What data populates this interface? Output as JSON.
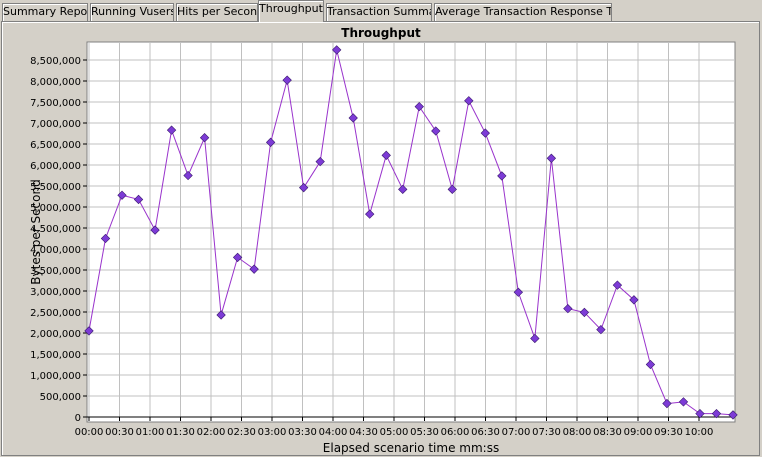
{
  "tabs": [
    {
      "label": "Summary Report"
    },
    {
      "label": "Running Vusers"
    },
    {
      "label": "Hits per Second"
    },
    {
      "label": "Throughput"
    },
    {
      "label": "Transaction Summary"
    },
    {
      "label": "Average Transaction Response Time"
    }
  ],
  "active_tab": 3,
  "chart_data": {
    "type": "line",
    "title": "Throughput",
    "xlabel": "Elapsed scenario time mm:ss",
    "ylabel": "Bytes per Second",
    "ylim": [
      0,
      8750000
    ],
    "grid": true,
    "series_color": "#9933cc",
    "marker_color": "#7d3bd6",
    "x_ticks": [
      "00:00",
      "00:30",
      "01:00",
      "01:30",
      "02:00",
      "02:30",
      "03:00",
      "03:30",
      "04:00",
      "04:30",
      "05:00",
      "05:30",
      "06:00",
      "06:30",
      "07:00",
      "07:30",
      "08:00",
      "08:30",
      "09:00",
      "09:30",
      "10:00"
    ],
    "y_ticks": [
      "0",
      "500,000",
      "1,000,000",
      "1,500,000",
      "2,000,000",
      "2,500,000",
      "3,000,000",
      "3,500,000",
      "4,000,000",
      "4,500,000",
      "5,000,000",
      "5,500,000",
      "6,000,000",
      "6,500,000",
      "7,000,000",
      "7,500,000",
      "8,000,000",
      "8,500,000"
    ],
    "series": [
      {
        "values": [
          2050000,
          4250000,
          5280000,
          5180000,
          4450000,
          6830000,
          5750000,
          6650000,
          2430000,
          3800000,
          3520000,
          6540000,
          8020000,
          5460000,
          6080000,
          8740000,
          7120000,
          4830000,
          6230000,
          5420000,
          7390000,
          6810000,
          5420000,
          7530000,
          6760000,
          5740000,
          2970000,
          1870000,
          6160000,
          2580000,
          2490000,
          2080000,
          3140000,
          2790000,
          1250000,
          320000,
          360000,
          80000,
          80000,
          50000
        ]
      }
    ]
  }
}
